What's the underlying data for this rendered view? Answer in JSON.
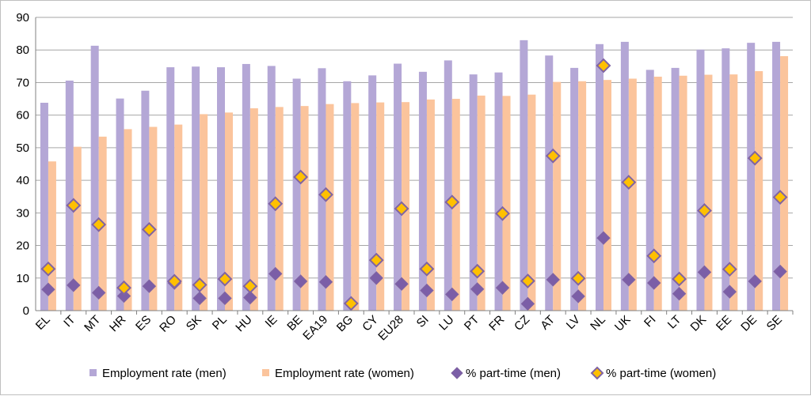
{
  "chart_data": {
    "type": "bar",
    "title": "",
    "xlabel": "",
    "ylabel": "",
    "ylim": [
      0,
      90
    ],
    "yticks": [
      0,
      10,
      20,
      30,
      40,
      50,
      60,
      70,
      80,
      90
    ],
    "grid": true,
    "legend_position": "bottom",
    "categories": [
      "EL",
      "IT",
      "MT",
      "HR",
      "ES",
      "RO",
      "SK",
      "PL",
      "HU",
      "IE",
      "BE",
      "EA19",
      "BG",
      "CY",
      "EU28",
      "SI",
      "LU",
      "PT",
      "FR",
      "CZ",
      "AT",
      "LV",
      "NL",
      "UK",
      "FI",
      "LT",
      "DK",
      "EE",
      "DE",
      "SE"
    ],
    "series": [
      {
        "name": "Employment rate (men)",
        "kind": "bar",
        "color": "#b4a7d6",
        "values": [
          63.8,
          70.6,
          81.3,
          65.1,
          67.5,
          74.7,
          74.9,
          74.7,
          75.7,
          75.1,
          71.2,
          74.4,
          70.4,
          72.2,
          75.8,
          73.3,
          76.8,
          72.5,
          73.1,
          83.0,
          78.3,
          74.5,
          81.8,
          82.5,
          73.9,
          74.5,
          80.1,
          80.5,
          82.2,
          82.5
        ]
      },
      {
        "name": "Employment rate (women)",
        "kind": "bar",
        "color": "#fbc49c",
        "values": [
          45.8,
          50.3,
          53.4,
          55.7,
          56.4,
          57.1,
          60.3,
          60.8,
          62.1,
          62.5,
          62.8,
          63.4,
          63.7,
          63.9,
          64.0,
          64.8,
          65.0,
          66.0,
          65.9,
          66.3,
          70.2,
          70.4,
          70.8,
          71.2,
          71.8,
          72.1,
          72.4,
          72.5,
          73.5,
          78.1
        ]
      },
      {
        "name": "% part-time (men)",
        "kind": "marker",
        "color": "#7b5ea7",
        "values": [
          6.5,
          7.8,
          5.5,
          4.5,
          7.5,
          8.5,
          3.8,
          3.8,
          4.0,
          11.3,
          9.0,
          8.8,
          2.2,
          10.0,
          8.2,
          6.2,
          5.0,
          6.6,
          7.0,
          2.1,
          9.5,
          4.4,
          22.3,
          9.5,
          8.5,
          5.2,
          11.8,
          5.8,
          9.0,
          12.0
        ]
      },
      {
        "name": "% part-time (women)",
        "kind": "marker",
        "color": "#ffc000",
        "values": [
          12.8,
          32.3,
          26.4,
          7.0,
          24.9,
          9.0,
          7.9,
          9.7,
          7.5,
          32.8,
          41.0,
          35.6,
          2.2,
          15.5,
          31.3,
          12.8,
          33.3,
          12.1,
          29.8,
          9.1,
          47.5,
          9.9,
          75.2,
          39.4,
          16.8,
          9.7,
          30.7,
          12.7,
          46.8,
          34.8
        ]
      }
    ]
  }
}
